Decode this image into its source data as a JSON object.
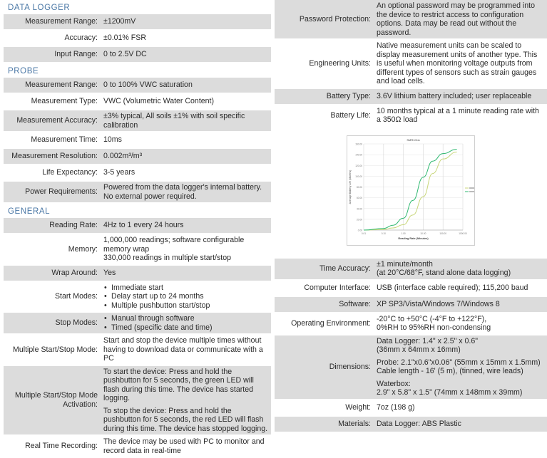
{
  "left": {
    "sections": [
      {
        "title": "DATA LOGGER",
        "rows": [
          {
            "label": "Measurement Range:",
            "value": [
              "±1200mV"
            ]
          },
          {
            "label": "Accuracy:",
            "value": [
              "±0.01% FSR"
            ]
          },
          {
            "label": "Input Range:",
            "value": [
              "0 to 2.5V DC"
            ]
          }
        ]
      },
      {
        "title": "PROBE",
        "rows": [
          {
            "label": "Measurement Range:",
            "value": [
              "0 to 100% VWC saturation"
            ]
          },
          {
            "label": "Measurement Type:",
            "value": [
              "VWC (Volumetric Water Content)"
            ]
          },
          {
            "label": "Measurement Accuracy:",
            "value": [
              "±3% typical, All soils ±1% with soil specific calibration"
            ]
          },
          {
            "label": "Measurement Time:",
            "value": [
              "10ms"
            ]
          },
          {
            "label": "Measurement Resolution:",
            "value": [
              "0.002m³/m³"
            ]
          },
          {
            "label": "Life Expectancy:",
            "value": [
              "3-5 years"
            ]
          },
          {
            "label": "Power Requirements:",
            "value": [
              "Powered from the data logger's internal battery. No external power required."
            ]
          }
        ]
      },
      {
        "title": "GENERAL",
        "rows": [
          {
            "label": "Reading Rate:",
            "value": [
              "4Hz to 1 every 24 hours"
            ]
          },
          {
            "label": "Memory:",
            "value": [
              "1,000,000 readings; software configurable memory wrap\n330,000 readings in multiple start/stop"
            ]
          },
          {
            "label": "Wrap Around:",
            "value": [
              "Yes"
            ]
          },
          {
            "label": "Start Modes:",
            "bullets": [
              "Immediate start",
              "Delay start up to 24 months",
              "Multiple pushbutton start/stop"
            ]
          },
          {
            "label": "Stop Modes:",
            "bullets": [
              "Manual through software",
              "Timed (specific date and time)"
            ]
          },
          {
            "label": "Multiple Start/Stop Mode:",
            "value": [
              "Start and stop the device multiple times without having to download data or communicate with a PC"
            ]
          },
          {
            "label": "Multiple Start/Stop Mode Activation:",
            "value": [
              "To start the device: Press and hold the pushbutton for 5 seconds, the green LED will flash during this time. The device has started logging.",
              "To stop the device: Press and hold the pushbutton for 5 seconds, the red LED will flash during this time. The device has stopped logging."
            ]
          },
          {
            "label": "Real Time Recording:",
            "value": [
              "The device may be used with PC to monitor and record data in real-time"
            ]
          }
        ]
      }
    ]
  },
  "right": {
    "top_rows": [
      {
        "label": "Password Protection:",
        "value": [
          "An optional password may be programmed into the device to restrict access to configuration options. Data may be read out without the password."
        ]
      },
      {
        "label": "Engineering Units:",
        "value": [
          "Native measurement units can be scaled to display measurement units of another type. This is useful when monitoring voltage outputs from different types of sensors such as strain gauges and load cells."
        ]
      },
      {
        "label": "Battery Type:",
        "value": [
          "3.6V lithium battery included; user replaceable"
        ]
      },
      {
        "label": "Battery Life:",
        "value": [
          "10 months typical at a 1 minute reading rate with a 350Ω load"
        ]
      }
    ],
    "bottom_rows": [
      {
        "label": "Time Accuracy:",
        "value": [
          "±1 minute/month\n(at 20°C/68°F, stand alone data logging)"
        ]
      },
      {
        "label": "Computer Interface:",
        "value": [
          "USB (interface cable required); 115,200 baud"
        ]
      },
      {
        "label": "Software:",
        "value": [
          "XP SP3/Vista/Windows 7/Windows 8"
        ]
      },
      {
        "label": "Operating Environment:",
        "value": [
          "-20°C to +50°C (-4°F to +122°F),\n0%RH to 95%RH non-condensing"
        ]
      },
      {
        "label": "Dimensions:",
        "value": [
          "Data Logger: 1.4\" x 2.5\" x 0.6\"\n(36mm x 64mm x 16mm)",
          "Probe: 2.1\"x0.6\"x0.06\" (55mm x 15mm x 1.5mm)\nCable length - 16' (5 m), (tinned, wire leads)",
          "Waterbox:\n2.9\" x 5.8\" x 1.5\" (74mm x 148mm x 39mm)"
        ]
      },
      {
        "label": "Weight:",
        "value": [
          "7oz (198 g)"
        ]
      },
      {
        "label": "Materials:",
        "value": [
          "Data Logger: ABS Plastic"
        ]
      }
    ]
  },
  "chart_data": {
    "type": "line",
    "title": "SMR101A",
    "xlabel": "Reading Rate (Minutes)",
    "ylabel": "Average Battery Life (Months)",
    "x_scale": "log",
    "xlim": [
      0.01,
      1000
    ],
    "ylim": [
      0,
      160
    ],
    "x_ticks": [
      "0.01",
      "0.10",
      "1.00",
      "10.00",
      "100.00",
      "1000.00"
    ],
    "y_ticks": [
      "0.00",
      "20.00",
      "40.00",
      "60.00",
      "80.00",
      "100.00",
      "120.00",
      "140.00",
      "160.00"
    ],
    "grid": true,
    "legend": "right",
    "series": [
      {
        "color": "#c8d67a",
        "x": [
          0.01,
          0.1,
          0.3,
          1,
          3,
          10,
          30,
          100,
          500
        ],
        "y": [
          0,
          1,
          4,
          10,
          28,
          62,
          105,
          132,
          145
        ]
      },
      {
        "color": "#2fb870",
        "x": [
          0.01,
          0.1,
          0.3,
          1,
          3,
          10,
          30,
          100,
          500
        ],
        "y": [
          0,
          3,
          9,
          22,
          55,
          98,
          128,
          142,
          150
        ]
      }
    ]
  }
}
